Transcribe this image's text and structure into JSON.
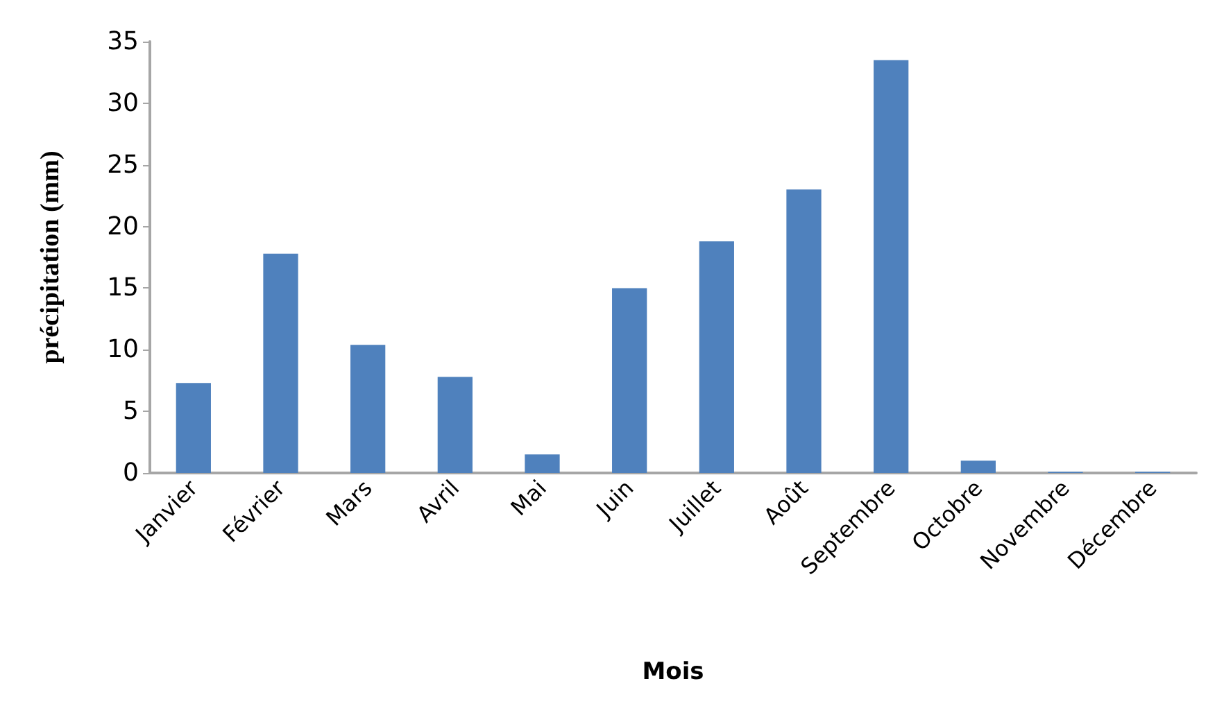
{
  "chart_data": {
    "type": "bar",
    "xlabel": "Mois",
    "ylabel": "précipitation (mm)",
    "categories": [
      "Janvier",
      "Février",
      "Mars",
      "Avril",
      "Mai",
      "Juin",
      "Juillet",
      "Août",
      "Septembre",
      "Octobre",
      "Novembre",
      "Décembre"
    ],
    "values": [
      7.3,
      17.8,
      10.4,
      7.8,
      1.5,
      15,
      18.8,
      23,
      33.5,
      1,
      0.1,
      0.1
    ],
    "color": "#4f81bd",
    "ylim": [
      0,
      35
    ],
    "yticks": [
      0,
      5,
      10,
      15,
      20,
      25,
      30,
      35
    ],
    "grid": false
  }
}
